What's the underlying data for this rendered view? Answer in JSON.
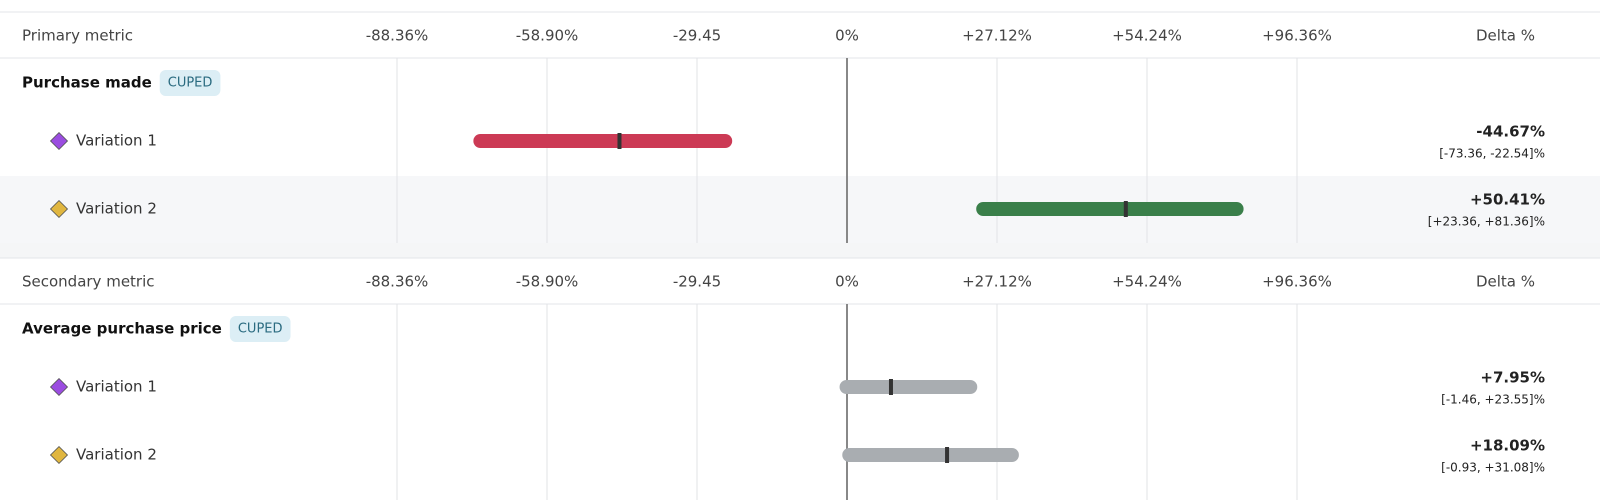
{
  "sections": [
    {
      "header": "Primary metric",
      "delta_header": "Delta %",
      "ticks": [
        {
          "value": -88.36,
          "label": "-88.36%"
        },
        {
          "value": -58.9,
          "label": "-58.90%"
        },
        {
          "value": -29.45,
          "label": "-29.45"
        },
        {
          "value": 0,
          "label": "0%"
        },
        {
          "value": 27.12,
          "label": "+27.12%"
        },
        {
          "value": 54.24,
          "label": "+54.24%"
        },
        {
          "value": 96.36,
          "label": "+96.36%"
        }
      ],
      "metric": "Purchase made",
      "badge": "CUPED",
      "rows": [
        {
          "name": "Variation 1",
          "marker_color": "#9b4de0",
          "color": "#cc3a55",
          "text_color": "#b0263f",
          "value": -44.67,
          "value_label": "-44.67%",
          "low": -73.36,
          "high": -22.54,
          "ci_label": "[-73.36, -22.54]%"
        },
        {
          "name": "Variation 2",
          "marker_color": "#e0b640",
          "color": "#3a7f4a",
          "text_color": "#2e6e3c",
          "value": 50.41,
          "value_label": "+50.41%",
          "low": 23.36,
          "high": 81.36,
          "ci_label": "[+23.36, +81.36]%"
        }
      ]
    },
    {
      "header": "Secondary metric",
      "delta_header": "Delta %",
      "ticks": [
        {
          "value": -88.36,
          "label": "-88.36%"
        },
        {
          "value": -58.9,
          "label": "-58.90%"
        },
        {
          "value": -29.45,
          "label": "-29.45"
        },
        {
          "value": 0,
          "label": "0%"
        },
        {
          "value": 27.12,
          "label": "+27.12%"
        },
        {
          "value": 54.24,
          "label": "+54.24%"
        },
        {
          "value": 96.36,
          "label": "+96.36%"
        }
      ],
      "metric": "Average purchase price",
      "badge": "CUPED",
      "rows": [
        {
          "name": "Variation 1",
          "marker_color": "#9b4de0",
          "color": "#a9adb1",
          "text_color": "#222222",
          "value": 7.95,
          "value_label": "+7.95%",
          "low": -1.46,
          "high": 23.55,
          "ci_label": "[-1.46, +23.55]%"
        },
        {
          "name": "Variation 2",
          "marker_color": "#e0b640",
          "color": "#a9adb1",
          "text_color": "#222222",
          "value": 18.09,
          "value_label": "+18.09%",
          "low": -0.93,
          "high": 31.08,
          "ci_label": "[-0.93, +31.08]%"
        }
      ]
    }
  ]
}
